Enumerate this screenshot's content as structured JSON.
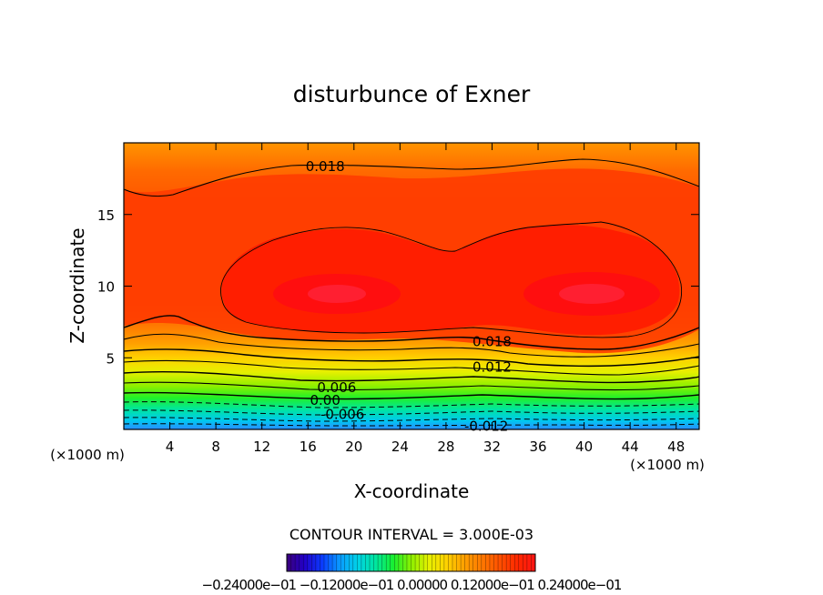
{
  "chart_data": {
    "type": "contour",
    "title": "disturbunce of Exner",
    "xlabel": "X-coordinate",
    "ylabel": "Z-coordinate",
    "x_unit_left": "(×1000 m)",
    "x_unit_right": "(×1000 m)",
    "xlim": [
      0,
      50
    ],
    "ylim": [
      0,
      20
    ],
    "x_ticks": [
      "4",
      "8",
      "12",
      "16",
      "20",
      "24",
      "28",
      "32",
      "36",
      "40",
      "44",
      "48"
    ],
    "y_ticks": [
      "5",
      "10",
      "15"
    ],
    "contour_interval_text": "CONTOUR INTERVAL = 3.000E-03",
    "contour_labels": [
      {
        "text": "0.018",
        "x": 17.5,
        "z": 18.4
      },
      {
        "text": "0.018",
        "x": 32.0,
        "z": 6.2
      },
      {
        "text": "0.012",
        "x": 32.0,
        "z": 4.4
      },
      {
        "text": "0.006",
        "x": 18.5,
        "z": 3.0
      },
      {
        "text": "0.00",
        "x": 17.5,
        "z": 2.1
      },
      {
        "text": "-0.006",
        "x": 19.0,
        "z": 1.1
      },
      {
        "text": "-0.012",
        "x": 31.5,
        "z": 0.3
      }
    ],
    "colorbar_tick_text": "−0.24000e−01  −0.12000e−01  0.00000  0.12000e−01  0.24000e−01",
    "colorbar_range": [
      -0.024,
      0.024
    ],
    "colormap": [
      "#3a007a",
      "#2200c8",
      "#0a3cff",
      "#0a9cff",
      "#00d2e6",
      "#00e6a0",
      "#18f030",
      "#8cf000",
      "#e6f000",
      "#ffd200",
      "#ffa000",
      "#ff7800",
      "#ff5000",
      "#ff2800",
      "#ff1414"
    ]
  }
}
